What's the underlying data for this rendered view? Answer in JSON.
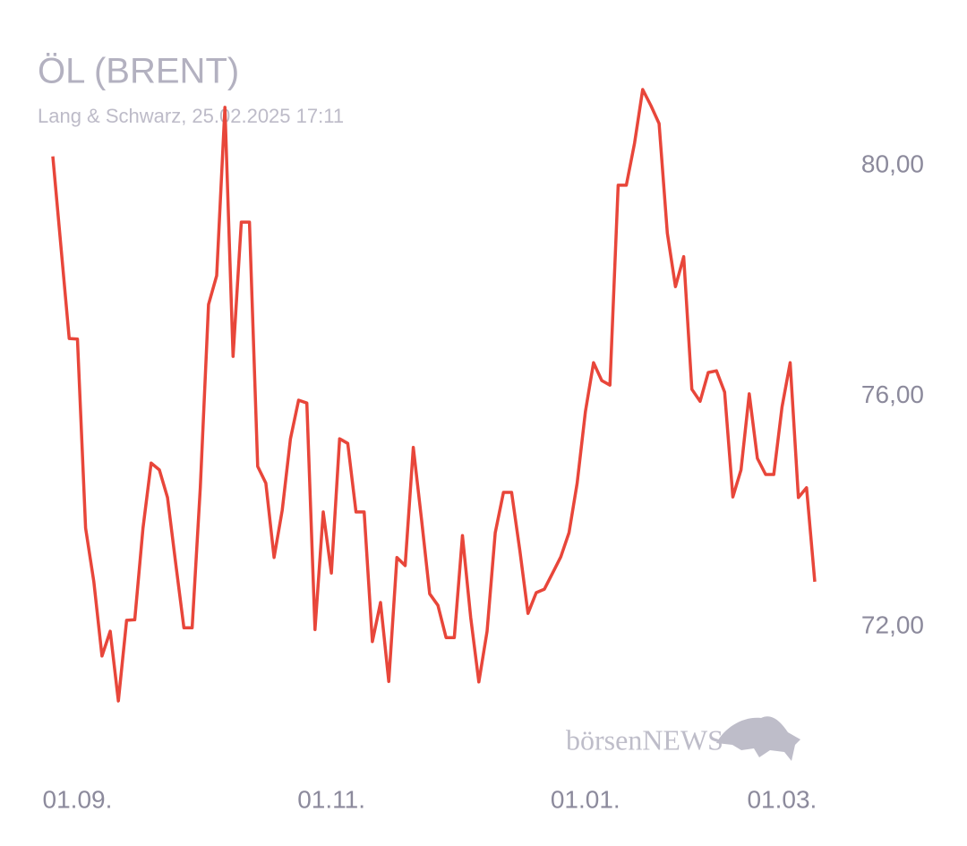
{
  "chart_data": {
    "type": "line",
    "title": "ÖL (BRENT)",
    "subtitle": "Lang & Schwarz, 25.02.2025 17:11",
    "watermark": "börsenNEWS",
    "categories": [
      null,
      null,
      null,
      "01.09.",
      null,
      null,
      null,
      null,
      null,
      null,
      null,
      null,
      null,
      null,
      null,
      null,
      null,
      null,
      null,
      null,
      null,
      null,
      null,
      null,
      null,
      null,
      null,
      null,
      null,
      null,
      null,
      null,
      null,
      null,
      "01.11.",
      null,
      null,
      null,
      null,
      null,
      null,
      null,
      null,
      null,
      null,
      null,
      null,
      null,
      null,
      null,
      null,
      null,
      null,
      null,
      null,
      null,
      null,
      null,
      null,
      null,
      null,
      null,
      null,
      null,
      null,
      "01.01.",
      null,
      null,
      null,
      null,
      null,
      null,
      null,
      null,
      null,
      null,
      null,
      null,
      null,
      null,
      null,
      null,
      null,
      null,
      null,
      null,
      null,
      null,
      null,
      "01.03.",
      null,
      null,
      null,
      null
    ],
    "series": [
      {
        "name": "Brent",
        "color": "#e8463a",
        "values": [
          80.16,
          78.57,
          77.0,
          76.99,
          73.71,
          72.78,
          71.49,
          71.92,
          70.71,
          72.11,
          72.12,
          73.71,
          74.84,
          74.72,
          74.24,
          73.09,
          71.98,
          71.98,
          74.41,
          77.59,
          78.09,
          81.01,
          76.69,
          79.02,
          79.02,
          74.78,
          74.49,
          73.2,
          74.02,
          75.26,
          75.93,
          75.88,
          71.95,
          73.99,
          72.93,
          75.26,
          75.18,
          73.99,
          73.99,
          71.74,
          72.42,
          71.05,
          73.2,
          73.06,
          75.11,
          73.86,
          72.57,
          72.37,
          71.81,
          71.81,
          73.58,
          72.16,
          71.04,
          71.92,
          73.63,
          74.33,
          74.33,
          73.32,
          72.23,
          72.59,
          72.65,
          72.93,
          73.21,
          73.63,
          74.49,
          75.73,
          76.58,
          76.27,
          76.19,
          79.66,
          79.66,
          80.39,
          81.32,
          81.04,
          80.73,
          78.83,
          77.9,
          78.42,
          76.12,
          75.91,
          76.41,
          76.44,
          76.07,
          74.25,
          74.72,
          76.04,
          74.92,
          74.64,
          74.64,
          75.81,
          76.58,
          74.24,
          74.41,
          72.78
        ]
      }
    ],
    "ylim": [
      70.4,
      81.5
    ],
    "yticks": [
      {
        "value": 72,
        "label": "72,00"
      },
      {
        "value": 76,
        "label": "76,00"
      },
      {
        "value": 80,
        "label": "80,00"
      }
    ],
    "grid": false
  }
}
